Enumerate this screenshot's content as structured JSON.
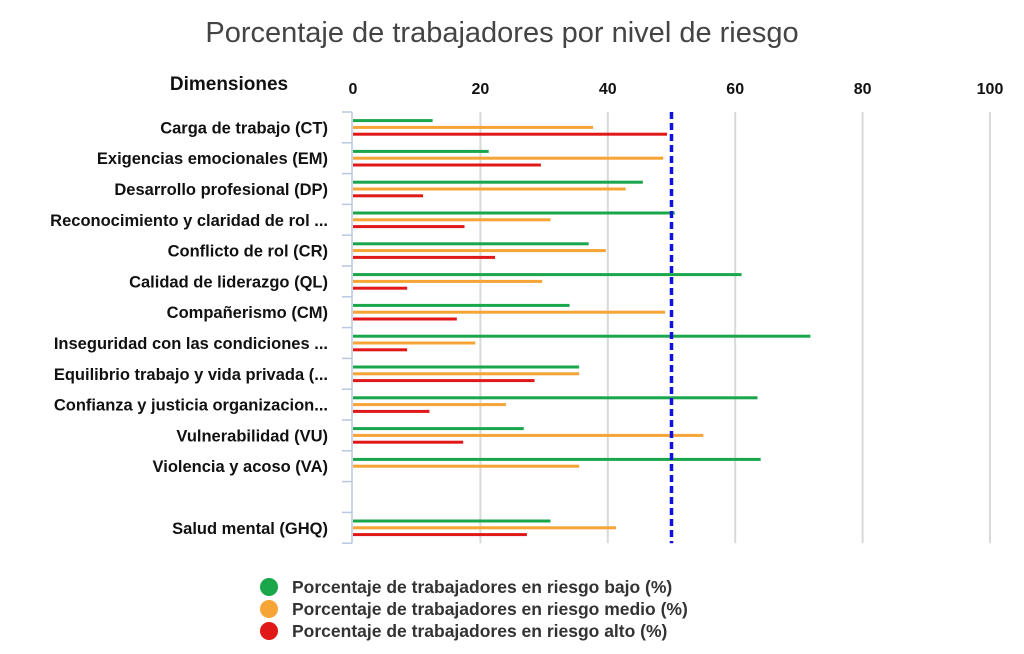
{
  "chart_data": {
    "type": "bar",
    "orientation": "horizontal",
    "title": "Porcentaje de trabajadores por nivel de riesgo",
    "category_header": "Dimensiones",
    "xlim": [
      0,
      100
    ],
    "xticks": [
      "0",
      "20",
      "40",
      "60",
      "80",
      "100"
    ],
    "grid": true,
    "legend_position": "bottom",
    "reference_line": {
      "value": 50,
      "color": "#1010e0",
      "style": "dashed"
    },
    "categories": [
      "Carga de trabajo (CT)",
      "Exigencias emocionales (EM)",
      "Desarrollo profesional (DP)",
      "Reconocimiento y claridad de rol ...",
      "Conflicto de rol (CR)",
      "Calidad de liderazgo (QL)",
      "Compañerismo (CM)",
      "Inseguridad con las condiciones ...",
      "Equilibrio trabajo y vida privada (...",
      "Confianza y justicia organizacion...",
      "Vulnerabilidad (VU)",
      "Violencia y acoso (VA)",
      "",
      "Salud mental (GHQ)"
    ],
    "series": [
      {
        "name": "Porcentaje de trabajadores en riesgo bajo (%)",
        "color": "#1aa64a",
        "values": [
          12.5,
          21.3,
          45.5,
          50.5,
          37,
          61,
          34,
          71.8,
          35.5,
          63.5,
          26.8,
          64,
          null,
          31
        ]
      },
      {
        "name": "Porcentaje de trabajadores en riesgo medio (%)",
        "color": "#f5a435",
        "values": [
          37.7,
          48.7,
          42.8,
          31,
          39.7,
          29.7,
          49,
          19.2,
          35.5,
          24,
          55,
          35.5,
          null,
          41.3
        ]
      },
      {
        "name": "Porcentaje de trabajadores en riesgo alto (%)",
        "color": "#e01818",
        "values": [
          49.3,
          29.5,
          11,
          17.5,
          22.3,
          8.5,
          16.3,
          8.5,
          28.5,
          12,
          17.3,
          null,
          null,
          27.3
        ]
      }
    ]
  }
}
